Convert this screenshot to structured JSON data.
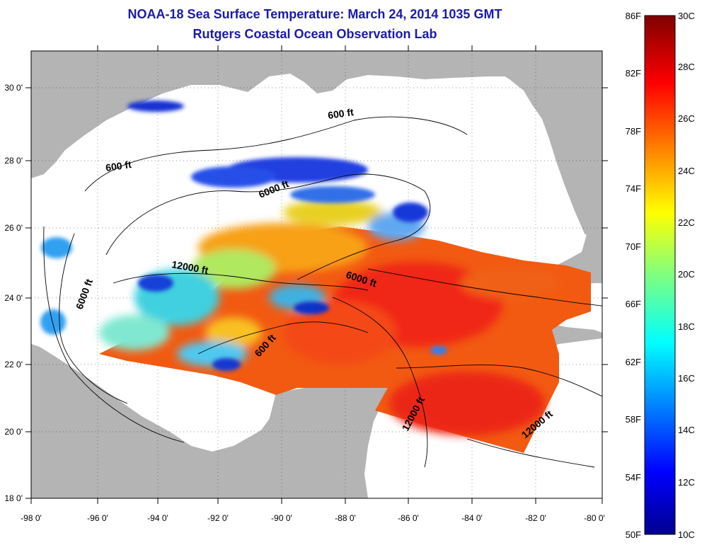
{
  "title": {
    "line1": "NOAA-18 Sea Surface Temperature:  March 24, 2014 1035 GMT",
    "line2": "Rutgers Coastal Ocean Observation Lab"
  },
  "map": {
    "lon_ticks": [
      "-98 0'",
      "-96 0'",
      "-94 0'",
      "-92 0'",
      "-90 0'",
      "-88 0'",
      "-86 0'",
      "-84 0'",
      "-82 0'",
      "-80 0'"
    ],
    "lat_ticks": [
      "30 0'",
      "28 0'",
      "26 0'",
      "24 0'",
      "22 0'",
      "20 0'",
      "18 0'"
    ],
    "contour_labels": [
      "600 ft",
      "600 ft",
      "6000 ft",
      "6000 ft",
      "6000 ft",
      "12000 ft",
      "600 ft",
      "12000 ft",
      "12000 ft"
    ],
    "colors": {
      "land": "#b4b4b4",
      "ocean_no_data": "#ffffff",
      "title": "#1a1aa8"
    }
  },
  "colorbar": {
    "fahrenheit_labels": [
      "86F",
      "82F",
      "78F",
      "74F",
      "70F",
      "66F",
      "62F",
      "58F",
      "54F",
      "50F"
    ],
    "celsius_labels": [
      "30C",
      "28C",
      "26C",
      "24C",
      "22C",
      "20C",
      "18C",
      "16C",
      "14C",
      "12C",
      "10C"
    ],
    "range_c": [
      10,
      30
    ],
    "colormap": "jet"
  }
}
